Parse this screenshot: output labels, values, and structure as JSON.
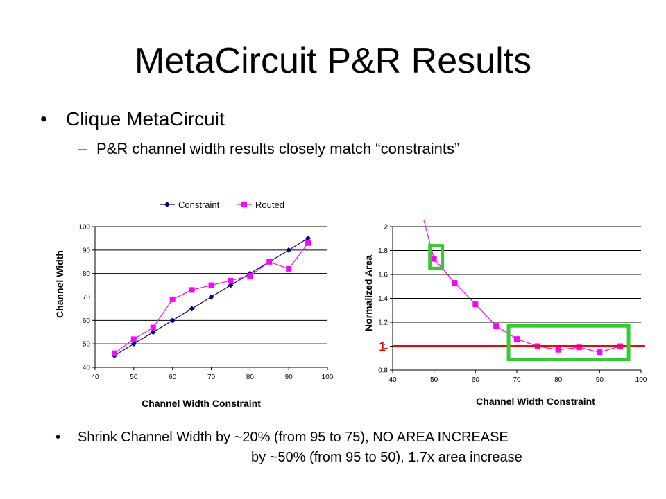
{
  "slide": {
    "title": "MetaCircuit P&R Results",
    "bullet1": "Clique MetaCircuit",
    "sub_bullet": "P&R channel width results closely match “constraints”",
    "bullet2_line1": "Shrink Channel Width by ~20% (from 95 to 75), NO AREA INCREASE",
    "bullet2_line2": "by ~50% (from 95 to 50), 1.7x area increase",
    "bullet_glyph": "•",
    "dash_glyph": "–"
  },
  "chart_data": [
    {
      "type": "line",
      "xlabel": "Channel Width Constraint",
      "ylabel": "Channel Width",
      "xlim": [
        40,
        100
      ],
      "ylim": [
        40,
        100
      ],
      "xticks": [
        40,
        50,
        60,
        70,
        80,
        90,
        100
      ],
      "yticks": [
        40,
        50,
        60,
        70,
        80,
        90,
        100
      ],
      "grid": true,
      "legend": "top",
      "series": [
        {
          "name": "Constraint",
          "color": "#000080",
          "marker": "diamond",
          "x": [
            45,
            50,
            55,
            60,
            65,
            70,
            75,
            80,
            85,
            90,
            95
          ],
          "values": [
            45,
            50,
            55,
            60,
            65,
            70,
            75,
            80,
            85,
            90,
            95
          ]
        },
        {
          "name": "Routed",
          "color": "#ff00ff",
          "marker": "square",
          "x": [
            45,
            50,
            55,
            60,
            65,
            70,
            75,
            80,
            85,
            90,
            95
          ],
          "values": [
            46,
            52,
            57,
            69,
            73,
            75,
            77,
            79,
            85,
            82,
            93
          ]
        }
      ]
    },
    {
      "type": "line",
      "xlabel": "Channel Width Constraint",
      "ylabel": "Normalized Area",
      "xlim": [
        40,
        100
      ],
      "ylim": [
        0.8,
        2
      ],
      "xticks": [
        40,
        50,
        60,
        70,
        80,
        90,
        100
      ],
      "yticks": [
        "0.8",
        "1",
        "1.2",
        "1.4",
        "1.6",
        "1.8",
        "2"
      ],
      "grid": true,
      "series": [
        {
          "color": "#ff00ff",
          "marker": "square",
          "x": [
            50,
            55,
            60,
            65,
            70,
            75,
            80,
            85,
            90,
            95
          ],
          "values": [
            1.73,
            1.53,
            1.35,
            1.17,
            1.06,
            1.0,
            0.97,
            0.99,
            0.95,
            1.0
          ]
        }
      ],
      "reference_line": {
        "y": 1,
        "label": "1",
        "color": "#ff0000"
      },
      "highlights": [
        {
          "x_range": [
            49,
            52
          ],
          "y_range": [
            1.65,
            1.84
          ],
          "color": "#33cc33"
        },
        {
          "x_range": [
            68,
            97
          ],
          "y_range": [
            0.89,
            1.17
          ],
          "color": "#33cc33"
        }
      ]
    }
  ]
}
